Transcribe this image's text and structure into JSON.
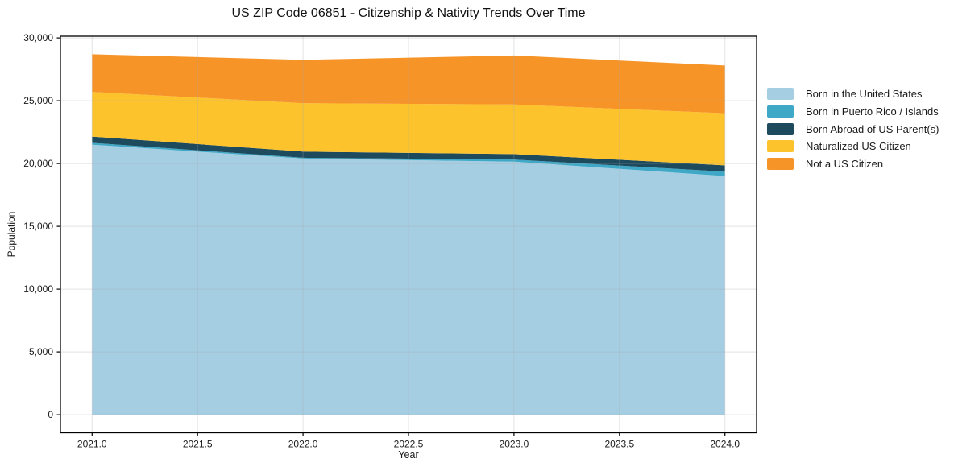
{
  "chart_data": {
    "type": "area",
    "stacked": true,
    "title": "US ZIP Code 06851 - Citizenship & Nativity Trends Over Time",
    "xlabel": "Year",
    "ylabel": "Population",
    "x": [
      2021,
      2022,
      2023,
      2024
    ],
    "series": [
      {
        "name": "Born in the United States",
        "color": "#a5cee3",
        "values": [
          21500,
          20400,
          20150,
          19000
        ]
      },
      {
        "name": "Born in Puerto Rico / Islands",
        "color": "#3ea8c6",
        "values": [
          150,
          60,
          170,
          350
        ]
      },
      {
        "name": "Born Abroad of US Parent(s)",
        "color": "#1d4a5d",
        "values": [
          500,
          490,
          430,
          500
        ]
      },
      {
        "name": "Naturalized US Citizen",
        "color": "#fcc32d",
        "values": [
          3550,
          3850,
          3950,
          4150
        ]
      },
      {
        "name": "Not a US Citizen",
        "color": "#f79428",
        "values": [
          3000,
          3450,
          3900,
          3800
        ]
      }
    ],
    "stacked_totals": [
      28700,
      28250,
      28600,
      27800
    ],
    "xlim": [
      2020.85,
      2024.15
    ],
    "ylim": [
      -1435,
      30135
    ],
    "x_ticks": [
      {
        "v": 2021.0,
        "label": "2021.0"
      },
      {
        "v": 2021.5,
        "label": "2021.5"
      },
      {
        "v": 2022.0,
        "label": "2022.0"
      },
      {
        "v": 2022.5,
        "label": "2022.5"
      },
      {
        "v": 2023.0,
        "label": "2023.0"
      },
      {
        "v": 2023.5,
        "label": "2023.5"
      },
      {
        "v": 2024.0,
        "label": "2024.0"
      }
    ],
    "y_ticks": [
      {
        "v": 0,
        "label": "0"
      },
      {
        "v": 5000,
        "label": "5,000"
      },
      {
        "v": 10000,
        "label": "10,000"
      },
      {
        "v": 15000,
        "label": "15,000"
      },
      {
        "v": 20000,
        "label": "20,000"
      },
      {
        "v": 25000,
        "label": "25,000"
      },
      {
        "v": 30000,
        "label": "30,000"
      }
    ],
    "grid": true,
    "legend_position": "right",
    "colors": {
      "spine": "#000000",
      "grid": "#a8a8a8",
      "text": "#1a1a1a"
    }
  }
}
